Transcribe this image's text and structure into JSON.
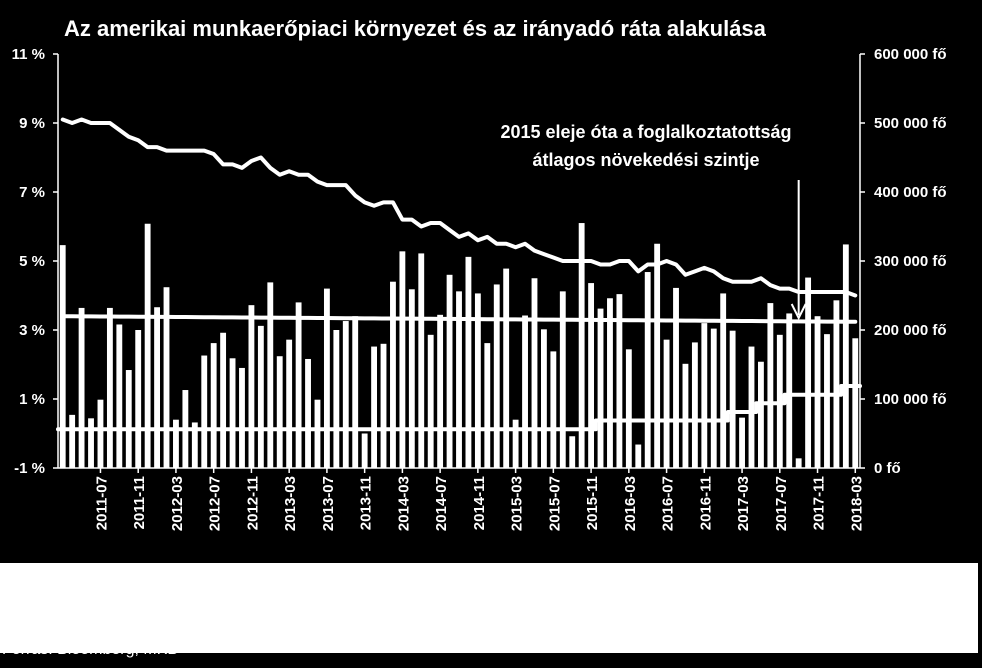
{
  "chart_data": {
    "type": "bar",
    "title": "Az amerikai munkaerőpiaci környezet és az irányadó ráta alakulása",
    "annotation": [
      "2015 eleje óta a foglalkoztatottság",
      "átlagos növekedési szintje"
    ],
    "source": "Forrás: Bloomberg, MKB",
    "x_tick_labels": [
      "2011-07",
      "2011-11",
      "2012-03",
      "2012-07",
      "2012-11",
      "2013-03",
      "2013-07",
      "2013-11",
      "2014-03",
      "2014-07",
      "2014-11",
      "2015-03",
      "2015-07",
      "2015-11",
      "2016-03",
      "2016-07",
      "2016-11",
      "2017-03",
      "2017-07",
      "2017-11",
      "2018-03"
    ],
    "left_axis": {
      "ticks": [
        "-1 %",
        "1 %",
        "3 %",
        "5 %",
        "7 %",
        "9 %",
        "11 %"
      ],
      "ylim": [
        -1,
        11
      ]
    },
    "right_axis": {
      "ticks": [
        "0 fő",
        "100 000 fő",
        "200 000 fő",
        "300 000 fő",
        "400 000 fő",
        "500 000 fő",
        "600 000 fő"
      ],
      "ylim": [
        0,
        600000
      ]
    },
    "grid": false,
    "colors": {
      "background": "#000000",
      "series": "#ffffff"
    },
    "series": [
      {
        "kind": "bar",
        "axis": "right",
        "x_start": "2011-03",
        "x_end": "2018-04",
        "values": [
          323000,
          77000,
          232000,
          72000,
          99000,
          232000,
          208000,
          142000,
          200000,
          354000,
          233000,
          262000,
          70000,
          113000,
          66000,
          163000,
          181000,
          196000,
          159000,
          145000,
          236000,
          206000,
          269000,
          162000,
          186000,
          240000,
          158000,
          99000,
          260000,
          200000,
          213000,
          220000,
          50000,
          176000,
          180000,
          270000,
          314000,
          259000,
          311000,
          193000,
          222000,
          280000,
          256000,
          306000,
          253000,
          181000,
          266000,
          289000,
          70000,
          221000,
          275000,
          201000,
          169000,
          256000,
          46000,
          355000,
          268000,
          231000,
          246000,
          252000,
          172000,
          34000,
          284000,
          325000,
          186000,
          261000,
          151000,
          182000,
          210000,
          202000,
          253000,
          199000,
          73000,
          176000,
          154000,
          239000,
          193000,
          224000,
          14000,
          276000,
          220000,
          194000,
          243000,
          324000,
          188000
        ]
      },
      {
        "kind": "line",
        "axis": "left",
        "x_start": "2011-03",
        "x_end": "2018-04",
        "values": [
          9.1,
          9.0,
          9.1,
          9.0,
          9.0,
          9.0,
          8.8,
          8.6,
          8.5,
          8.3,
          8.3,
          8.2,
          8.2,
          8.2,
          8.2,
          8.2,
          8.1,
          7.8,
          7.8,
          7.7,
          7.9,
          8.0,
          7.7,
          7.5,
          7.6,
          7.5,
          7.5,
          7.3,
          7.2,
          7.2,
          7.2,
          6.9,
          6.7,
          6.6,
          6.7,
          6.7,
          6.2,
          6.2,
          6.0,
          6.1,
          6.1,
          5.9,
          5.7,
          5.8,
          5.6,
          5.7,
          5.5,
          5.5,
          5.4,
          5.5,
          5.3,
          5.2,
          5.1,
          5.0,
          5.0,
          5.0,
          5.0,
          4.9,
          4.9,
          5.0,
          5.0,
          4.7,
          4.9,
          4.9,
          5.0,
          4.9,
          4.6,
          4.7,
          4.8,
          4.7,
          4.5,
          4.4,
          4.4,
          4.4,
          4.5,
          4.3,
          4.2,
          4.2,
          4.1,
          4.1,
          4.1,
          4.1,
          4.1,
          4.1,
          4.0
        ]
      },
      {
        "kind": "line",
        "axis": "right",
        "x_start": "2011-03",
        "x_end": "2018-04",
        "values": [
          220000,
          219904,
          219807,
          219711,
          219614,
          219518,
          219422,
          219325,
          219229,
          219133,
          219036,
          218940,
          218843,
          218747,
          218651,
          218554,
          218458,
          218361,
          218265,
          218169,
          218072,
          217976,
          217880,
          217783,
          217687,
          217590,
          217494,
          217398,
          217301,
          217205,
          217108,
          217012,
          216916,
          216819,
          216723,
          216627,
          216530,
          216434,
          216337,
          216241,
          216145,
          216048,
          215952,
          215855,
          215759,
          215663,
          215566,
          215470,
          215373,
          215277,
          215181,
          215084,
          214988,
          214892,
          214795,
          214699,
          214602,
          214506,
          214410,
          214313,
          214217,
          214120,
          214024,
          213928,
          213831,
          213735,
          213639,
          213542,
          213446,
          213349,
          213253,
          213157,
          213060,
          212964,
          212867,
          212771,
          212675,
          212578,
          212482,
          212386,
          212289,
          212193,
          212096,
          212000,
          211904
        ]
      },
      {
        "kind": "step",
        "axis": "left",
        "x_start": "2011-03",
        "x_end": "2018-04",
        "values": [
          0.125,
          0.125,
          0.125,
          0.125,
          0.125,
          0.125,
          0.125,
          0.125,
          0.125,
          0.125,
          0.125,
          0.125,
          0.125,
          0.125,
          0.125,
          0.125,
          0.125,
          0.125,
          0.125,
          0.125,
          0.125,
          0.125,
          0.125,
          0.125,
          0.125,
          0.125,
          0.125,
          0.125,
          0.125,
          0.125,
          0.125,
          0.125,
          0.125,
          0.125,
          0.125,
          0.125,
          0.125,
          0.125,
          0.125,
          0.125,
          0.125,
          0.125,
          0.125,
          0.125,
          0.125,
          0.125,
          0.125,
          0.125,
          0.125,
          0.125,
          0.125,
          0.125,
          0.125,
          0.125,
          0.125,
          0.125,
          0.125,
          0.375,
          0.375,
          0.375,
          0.375,
          0.375,
          0.375,
          0.375,
          0.375,
          0.375,
          0.375,
          0.375,
          0.375,
          0.375,
          0.375,
          0.625,
          0.625,
          0.625,
          0.875,
          0.875,
          0.875,
          1.125,
          1.125,
          1.125,
          1.125,
          1.125,
          1.125,
          1.375,
          1.375
        ]
      }
    ]
  }
}
